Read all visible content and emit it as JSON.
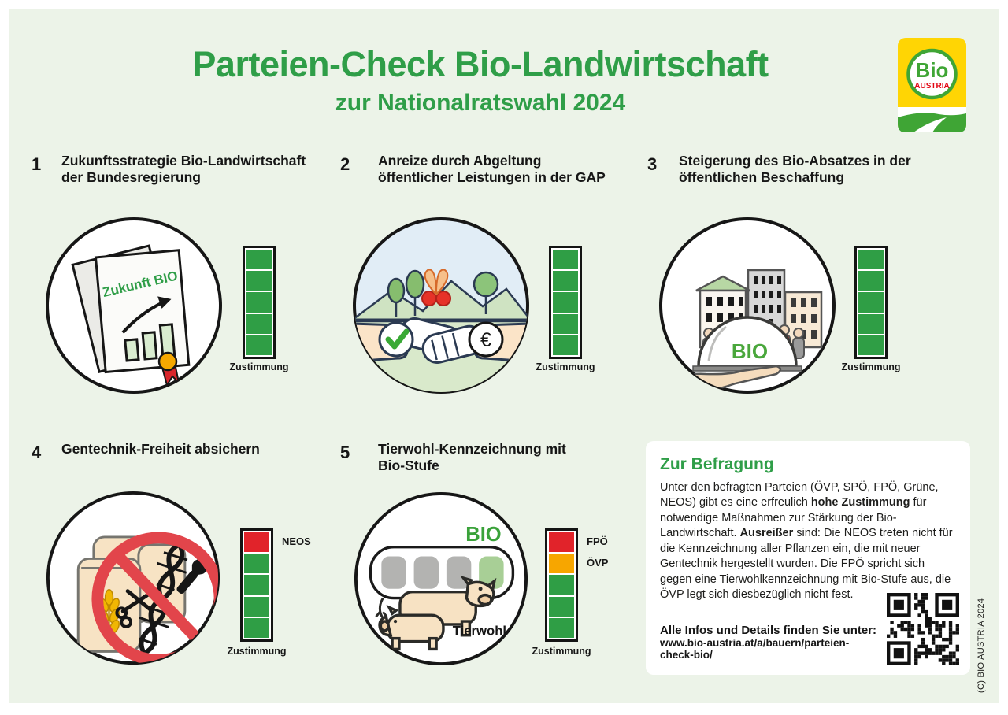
{
  "page": {
    "title": "Parteien-Check Bio-Landwirtschaft",
    "subtitle": "zur Nationalratswahl 2024",
    "copyright": "(C) BIO AUSTRIA 2024"
  },
  "logo": {
    "line1": "Bio",
    "line2": "AUSTRIA"
  },
  "colors": {
    "panel_bg": "#ecf3e8",
    "title_green": "#2f9e48",
    "bar_green": "#2f9e45",
    "bar_red": "#e1232a",
    "bar_orange": "#f7a600"
  },
  "topics": [
    {
      "number": "1",
      "title_lines": [
        "Zukunftsstrategie Bio-Landwirtschaft",
        "der Bundesregierung"
      ],
      "illustration": "zukunft-bio-document",
      "illustration_label": "Zukunft BIO",
      "bar": {
        "label": "Zustimmung",
        "cells": [
          {
            "color": "#2f9e45"
          },
          {
            "color": "#2f9e45"
          },
          {
            "color": "#2f9e45"
          },
          {
            "color": "#2f9e45"
          },
          {
            "color": "#2f9e45"
          }
        ]
      }
    },
    {
      "number": "2",
      "title_lines": [
        "Anreize durch Abgeltung",
        "öffentlicher Leistungen in der GAP"
      ],
      "illustration": "handshake-landscape",
      "bar": {
        "label": "Zustimmung",
        "cells": [
          {
            "color": "#2f9e45"
          },
          {
            "color": "#2f9e45"
          },
          {
            "color": "#2f9e45"
          },
          {
            "color": "#2f9e45"
          },
          {
            "color": "#2f9e45"
          }
        ]
      }
    },
    {
      "number": "3",
      "title_lines": [
        "Steigerung des Bio-Absatzes in der",
        "öffentlichen Beschaffung"
      ],
      "illustration": "bio-cloche-public",
      "illustration_label": "BIO",
      "bar": {
        "label": "Zustimmung",
        "cells": [
          {
            "color": "#2f9e45"
          },
          {
            "color": "#2f9e45"
          },
          {
            "color": "#2f9e45"
          },
          {
            "color": "#2f9e45"
          },
          {
            "color": "#2f9e45"
          }
        ]
      }
    },
    {
      "number": "4",
      "title_lines": [
        "Gentechnik-Freiheit absichern"
      ],
      "illustration": "no-gmo-grain",
      "bar": {
        "label": "Zustimmung",
        "cells": [
          {
            "color": "#e1232a",
            "party": "NEOS"
          },
          {
            "color": "#2f9e45"
          },
          {
            "color": "#2f9e45"
          },
          {
            "color": "#2f9e45"
          },
          {
            "color": "#2f9e45"
          }
        ]
      }
    },
    {
      "number": "5",
      "title_lines": [
        "Tierwohl-Kennzeichnung mit",
        "Bio-Stufe"
      ],
      "illustration": "tierwohl-label-animals",
      "illustration_label": "BIO",
      "illustration_sublabel": "Tierwohl",
      "bar": {
        "label": "Zustimmung",
        "cells": [
          {
            "color": "#e1232a",
            "party": "FPÖ"
          },
          {
            "color": "#f7a600",
            "party": "ÖVP"
          },
          {
            "color": "#2f9e45"
          },
          {
            "color": "#2f9e45"
          },
          {
            "color": "#2f9e45"
          }
        ]
      }
    }
  ],
  "info": {
    "heading": "Zur Befragung",
    "paragraph": [
      {
        "text": "Unter den befragten Parteien (ÖVP, SPÖ, FPÖ, Grüne, NEOS) gibt es eine erfreulich ",
        "bold": false
      },
      {
        "text": "hohe Zustimmung",
        "bold": true
      },
      {
        "text": " für notwendige Maßnahmen zur Stärkung der Bio-Landwirtschaft. ",
        "bold": false
      },
      {
        "text": "Ausreißer",
        "bold": true
      },
      {
        "text": " sind: Die NEOS treten nicht für die Kennzeichnung aller Pflanzen ein, die mit neuer Gentechnik hergestellt wurden. Die FPÖ spricht sich gegen eine Tierwohlkennzeichnung mit Bio-Stufe aus, die ÖVP legt sich diesbezüglich nicht fest.",
        "bold": false
      }
    ],
    "footer_label": "Alle Infos und Details finden Sie unter:",
    "footer_url": "www.bio-austria.at/a/bauern/parteien-check-bio/"
  }
}
